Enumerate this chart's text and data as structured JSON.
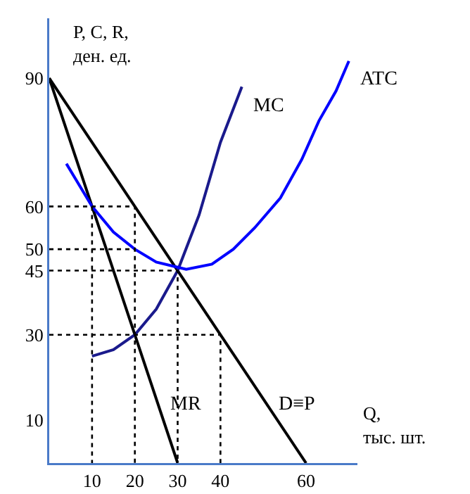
{
  "chart_data": {
    "type": "line",
    "xlabel": "Q,\nтыс. шт.",
    "ylabel": "P, C, R,\nден. ед.",
    "xlim": [
      0,
      72
    ],
    "ylim": [
      0,
      104
    ],
    "xticks": [
      10,
      20,
      30,
      40,
      60
    ],
    "yticks": [
      10,
      30,
      45,
      50,
      60,
      90
    ],
    "grid": false,
    "legend": false,
    "marker": "none",
    "series": [
      {
        "name": "D≡P",
        "color": "#000000",
        "x": [
          0,
          60
        ],
        "values": [
          90,
          0
        ]
      },
      {
        "name": "MR",
        "color": "#000000",
        "x": [
          0,
          30
        ],
        "values": [
          90,
          0
        ]
      },
      {
        "name": "MC",
        "color": "#1a1a8c",
        "x": [
          10,
          15,
          20,
          25,
          30,
          35,
          40,
          45
        ],
        "values": [
          25,
          26.5,
          30,
          36,
          45,
          58,
          75,
          88
        ]
      },
      {
        "name": "ATC",
        "color": "#0000ff",
        "x": [
          4,
          10,
          15,
          20,
          25,
          32,
          38,
          43,
          48,
          54,
          59,
          63,
          67,
          70
        ],
        "values": [
          70,
          60,
          54,
          50,
          47,
          45.3,
          46.5,
          50,
          55,
          62,
          71,
          80,
          87,
          94
        ]
      },
      {
        "color": "#000000",
        "line_style": "dotted",
        "x": [
          0,
          20,
          20
        ],
        "values": [
          60,
          60,
          0
        ]
      },
      {
        "color": "#000000",
        "line_style": "dotted",
        "x": [
          10,
          10
        ],
        "values": [
          60,
          0
        ]
      },
      {
        "color": "#000000",
        "line_style": "dotted",
        "x": [
          0,
          20
        ],
        "values": [
          50,
          50
        ]
      },
      {
        "color": "#000000",
        "line_style": "dotted",
        "x": [
          0,
          30,
          30
        ],
        "values": [
          45,
          45,
          0
        ]
      },
      {
        "color": "#000000",
        "line_style": "dotted",
        "x": [
          0,
          40,
          40
        ],
        "values": [
          30,
          30,
          0
        ]
      }
    ]
  }
}
